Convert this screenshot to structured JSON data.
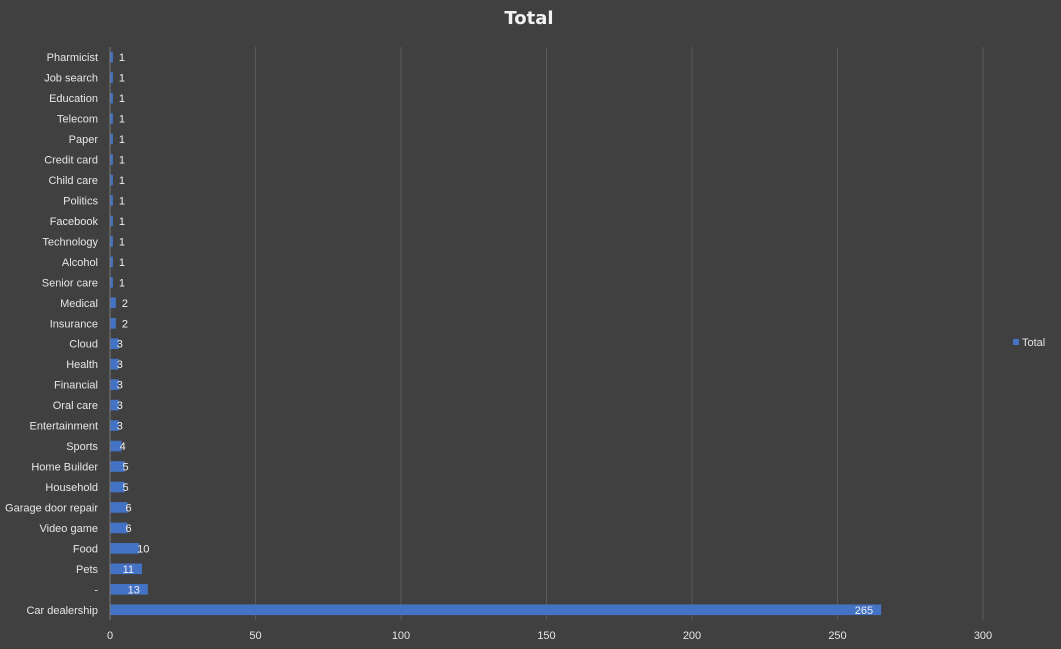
{
  "chart_data": {
    "type": "bar",
    "orientation": "horizontal",
    "title": "Total",
    "xlabel": "",
    "ylabel": "",
    "xlim": [
      0,
      300
    ],
    "x_ticks": [
      0,
      50,
      100,
      150,
      200,
      250,
      300
    ],
    "grid": true,
    "legend_position": "right",
    "series": [
      {
        "name": "Total",
        "color": "#4472c4",
        "categories": [
          "Car dealership",
          "-",
          "Pets",
          "Food",
          "Video game",
          "Garage door repair",
          "Household",
          "Home Builder",
          "Sports",
          "Entertainment",
          "Oral care",
          "Financial",
          "Health",
          "Cloud",
          "Insurance",
          "Medical",
          "Senior care",
          "Alcohol",
          "Technology",
          "Facebook",
          "Politics",
          "Child care",
          "Credit card",
          "Paper",
          "Telecom",
          "Education",
          "Job search",
          "Pharmicist"
        ],
        "values": [
          265,
          13,
          11,
          10,
          6,
          6,
          5,
          5,
          4,
          3,
          3,
          3,
          3,
          3,
          2,
          2,
          1,
          1,
          1,
          1,
          1,
          1,
          1,
          1,
          1,
          1,
          1,
          1
        ]
      }
    ]
  },
  "colors": {
    "background": "#404040",
    "bar": "#4472c4",
    "grid": "#5a5a5a",
    "text": "#e6e6e6"
  }
}
